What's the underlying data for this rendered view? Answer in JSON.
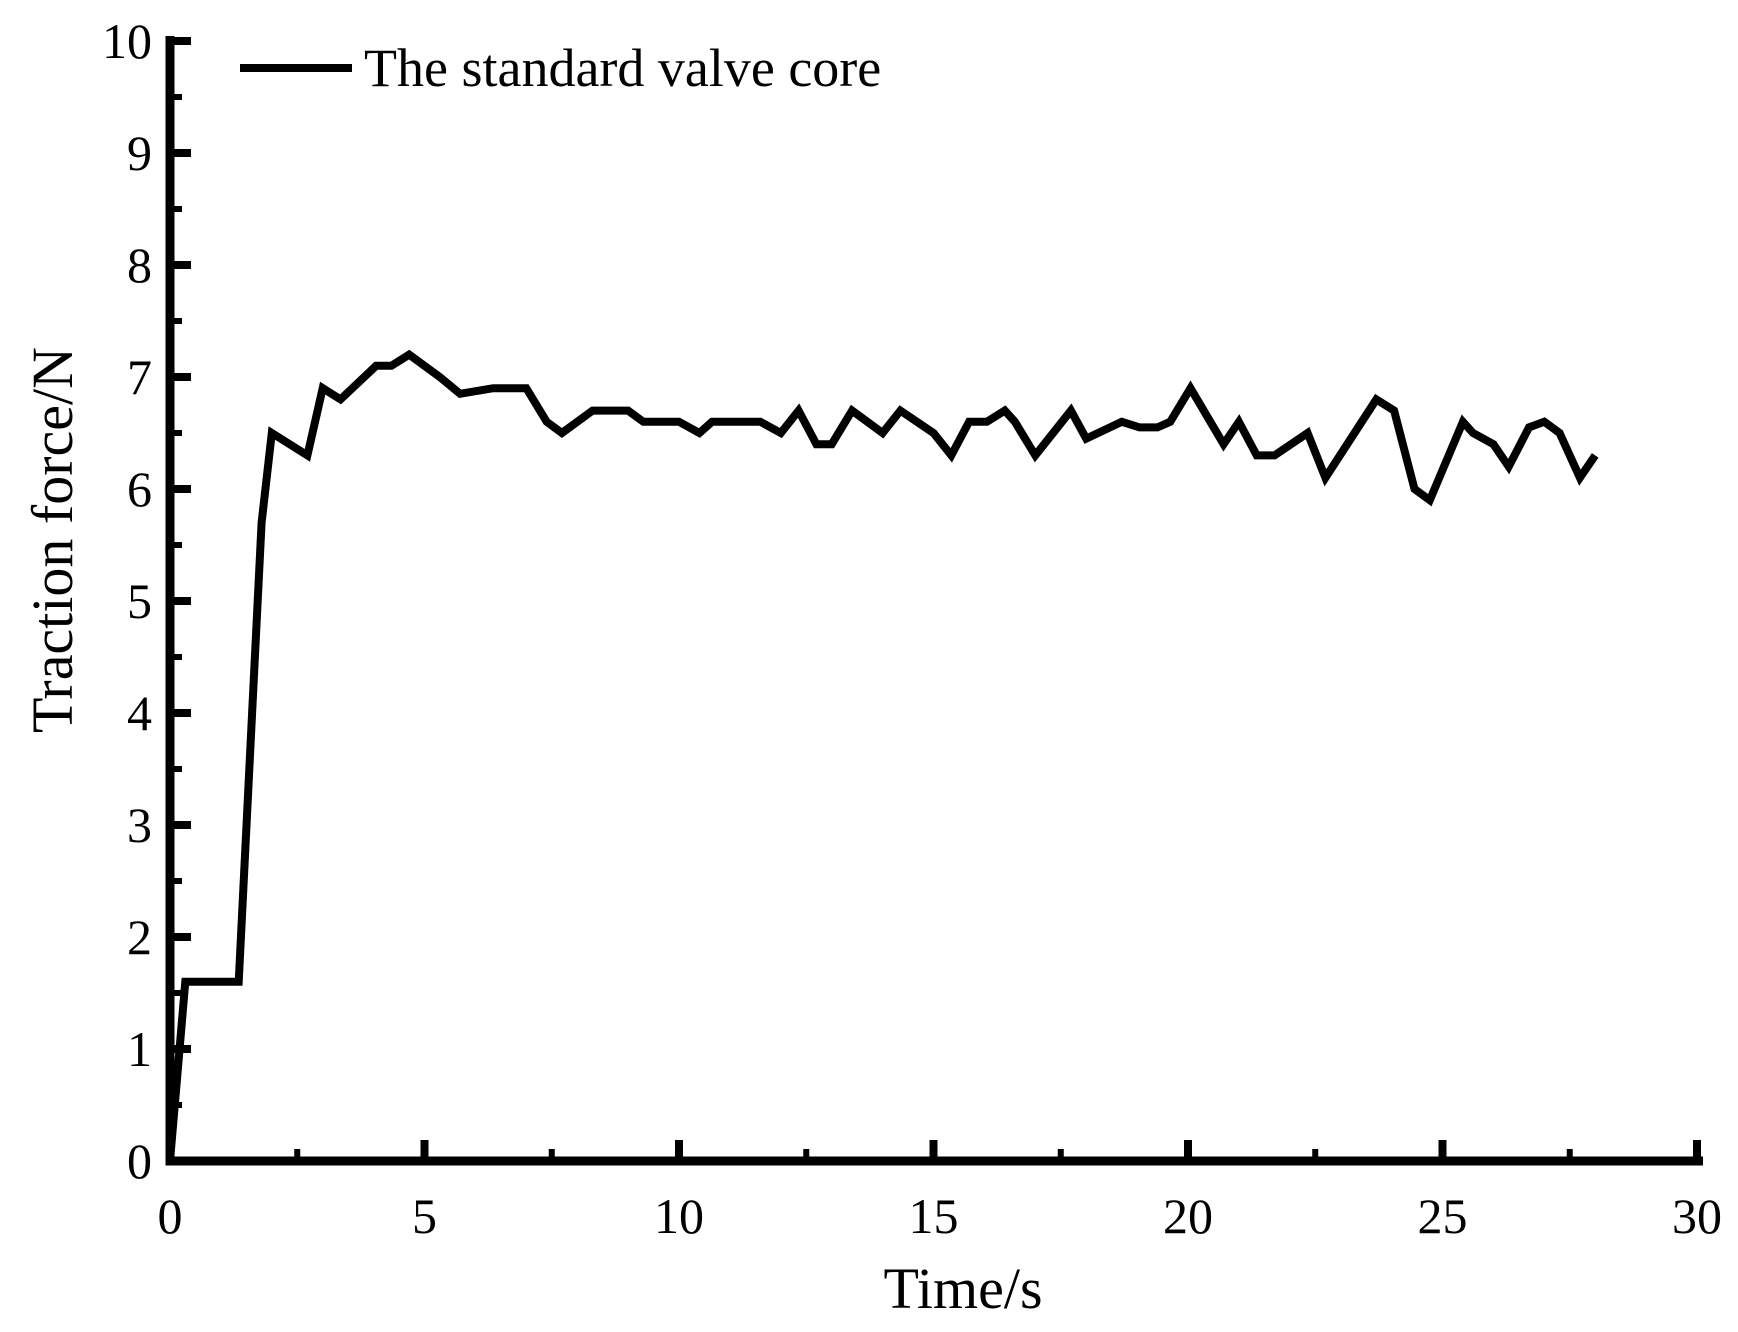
{
  "colors": {
    "background": "#ffffff",
    "axis": "#000000",
    "text": "#000000",
    "series": "#000000"
  },
  "chart_data": {
    "type": "line",
    "title": "",
    "xlabel": "Time/s",
    "ylabel": "Traction force/N",
    "xlim": [
      0,
      30
    ],
    "ylim": [
      0,
      10
    ],
    "grid": false,
    "x_major_ticks": [
      0,
      5,
      10,
      15,
      20,
      25,
      30
    ],
    "x_minor_ticks": [
      2.5,
      7.5,
      12.5,
      17.5,
      22.5,
      27.5
    ],
    "y_major_ticks": [
      0,
      1,
      2,
      3,
      4,
      5,
      6,
      7,
      8,
      9,
      10
    ],
    "y_minor_ticks": [
      0.5,
      1.5,
      2.5,
      3.5,
      4.5,
      5.5,
      6.5,
      7.5,
      8.5,
      9.5
    ],
    "legend": {
      "position": "top-left-inside",
      "entries": [
        {
          "label": "The standard valve core",
          "color": "#000000",
          "style": "solid"
        }
      ]
    },
    "series": [
      {
        "name": "The standard valve core",
        "color": "#000000",
        "points": [
          [
            0,
            0
          ],
          [
            0.3,
            1.6
          ],
          [
            1.35,
            1.6
          ],
          [
            1.8,
            5.7
          ],
          [
            2.0,
            6.5
          ],
          [
            2.7,
            6.3
          ],
          [
            3.0,
            6.9
          ],
          [
            3.35,
            6.8
          ],
          [
            4.05,
            7.1
          ],
          [
            4.35,
            7.1
          ],
          [
            4.7,
            7.2
          ],
          [
            5.3,
            7.0
          ],
          [
            5.7,
            6.85
          ],
          [
            6.35,
            6.9
          ],
          [
            7.0,
            6.9
          ],
          [
            7.4,
            6.6
          ],
          [
            7.7,
            6.5
          ],
          [
            8.3,
            6.7
          ],
          [
            9.0,
            6.7
          ],
          [
            9.3,
            6.6
          ],
          [
            10.0,
            6.6
          ],
          [
            10.4,
            6.5
          ],
          [
            10.65,
            6.6
          ],
          [
            11.6,
            6.6
          ],
          [
            12.0,
            6.5
          ],
          [
            12.35,
            6.7
          ],
          [
            12.7,
            6.4
          ],
          [
            13.0,
            6.4
          ],
          [
            13.4,
            6.7
          ],
          [
            14.0,
            6.5
          ],
          [
            14.35,
            6.7
          ],
          [
            15.0,
            6.5
          ],
          [
            15.35,
            6.3
          ],
          [
            15.7,
            6.6
          ],
          [
            16.05,
            6.6
          ],
          [
            16.4,
            6.7
          ],
          [
            16.6,
            6.6
          ],
          [
            17.0,
            6.3
          ],
          [
            17.7,
            6.7
          ],
          [
            18.0,
            6.45
          ],
          [
            18.7,
            6.6
          ],
          [
            19.05,
            6.55
          ],
          [
            19.4,
            6.55
          ],
          [
            19.65,
            6.6
          ],
          [
            20.05,
            6.9
          ],
          [
            20.7,
            6.4
          ],
          [
            21.0,
            6.6
          ],
          [
            21.35,
            6.3
          ],
          [
            21.7,
            6.3
          ],
          [
            22.35,
            6.5
          ],
          [
            22.7,
            6.1
          ],
          [
            23.7,
            6.8
          ],
          [
            24.05,
            6.7
          ],
          [
            24.45,
            6.0
          ],
          [
            24.75,
            5.9
          ],
          [
            25.4,
            6.6
          ],
          [
            25.6,
            6.5
          ],
          [
            26.0,
            6.4
          ],
          [
            26.3,
            6.2
          ],
          [
            26.7,
            6.55
          ],
          [
            27.0,
            6.6
          ],
          [
            27.3,
            6.5
          ],
          [
            27.7,
            6.1
          ],
          [
            28.0,
            6.3
          ]
        ]
      }
    ]
  }
}
